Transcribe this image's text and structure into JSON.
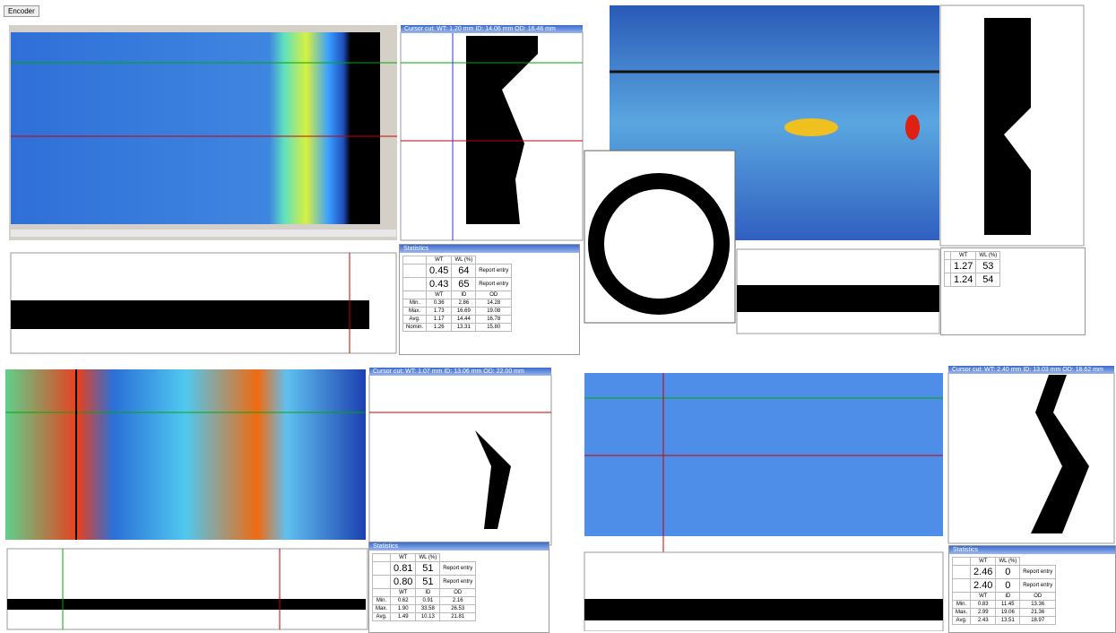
{
  "tab": "Encoder",
  "panels": [
    {
      "cut_title": "Cursor cut: WT: 1.20 mm ID: 14.06 mm OD: 16.46 mm",
      "statistics": {
        "title": "Statistics",
        "head": [
          "WT",
          "WL (%)"
        ],
        "entries": [
          [
            "0.45",
            "64",
            "Report entry"
          ],
          [
            "0.43",
            "65",
            "Report entry"
          ]
        ],
        "columns": [
          "WT",
          "ID",
          "OD"
        ],
        "rows": [
          [
            "Min.",
            "0.36",
            "2.86",
            "14.28"
          ],
          [
            "Max.",
            "1.73",
            "16.69",
            "19.08"
          ],
          [
            "Avg.",
            "1.17",
            "14.44",
            "16.78"
          ],
          [
            "Nomin.",
            "1.26",
            "13.31",
            "15.80"
          ]
        ]
      }
    },
    {
      "statistics": {
        "head": [
          "WT",
          "WL (%)"
        ],
        "entries": [
          [
            "1.27",
            "53"
          ],
          [
            "1.24",
            "54"
          ]
        ]
      }
    },
    {
      "cut_title": "Cursor cut: WT: 1.07 mm ID: 13.06 mm OD: 22.00 mm",
      "statistics": {
        "title": "Statistics",
        "head": [
          "WT",
          "WL (%)"
        ],
        "entries": [
          [
            "0.81",
            "51",
            "Report entry"
          ],
          [
            "0.80",
            "51",
            "Report entry"
          ]
        ],
        "columns": [
          "WT",
          "ID",
          "OD"
        ],
        "rows": [
          [
            "Min.",
            "0.62",
            "0.91",
            "2.16"
          ],
          [
            "Max.",
            "1.90",
            "33.58",
            "26.53"
          ],
          [
            "Avg.",
            "1.49",
            "10.13",
            "21.81"
          ]
        ]
      }
    },
    {
      "cut_title": "Cursor cut: WT: 2.40 mm ID: 13.03 mm OD: 18.62 mm",
      "statistics": {
        "title": "Statistics",
        "head": [
          "WT",
          "WL (%)"
        ],
        "entries": [
          [
            "2.46",
            "0",
            "Report entry"
          ],
          [
            "2.40",
            "0",
            "Report entry"
          ]
        ],
        "columns": [
          "WT",
          "ID",
          "OD"
        ],
        "rows": [
          [
            "Min.",
            "0.83",
            "11.45",
            "13.36"
          ],
          [
            "Max.",
            "2.99",
            "19.06",
            "21.36"
          ],
          [
            "Avg.",
            "2.43",
            "13.51",
            "18.97"
          ]
        ]
      }
    }
  ]
}
